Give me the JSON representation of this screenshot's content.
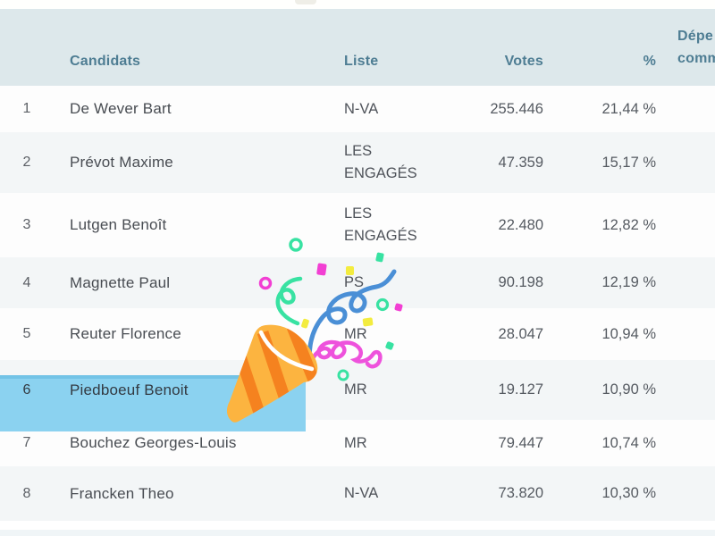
{
  "header": {
    "candidats": "Candidats",
    "liste": "Liste",
    "votes": "Votes",
    "pct": "%",
    "extra_line1": "Dépe",
    "extra_line2": "comm"
  },
  "table": {
    "rows": [
      {
        "rank": "1",
        "candidate": "De Wever Bart",
        "liste": "N-VA",
        "votes": "255.446",
        "pct": "21,44 %"
      },
      {
        "rank": "2",
        "candidate": "Prévot Maxime",
        "liste": "LES ENGAGÉS",
        "votes": "47.359",
        "pct": "15,17 %"
      },
      {
        "rank": "3",
        "candidate": "Lutgen Benoît",
        "liste": "LES ENGAGÉS",
        "votes": "22.480",
        "pct": "12,82 %"
      },
      {
        "rank": "4",
        "candidate": "Magnette Paul",
        "liste": "PS",
        "votes": "90.198",
        "pct": "12,19 %"
      },
      {
        "rank": "5",
        "candidate": "Reuter Florence",
        "liste": "MR",
        "votes": "28.047",
        "pct": "10,94 %"
      },
      {
        "rank": "6",
        "candidate": "Piedboeuf Benoit",
        "liste": "MR",
        "votes": "19.127",
        "pct": "10,90 %"
      },
      {
        "rank": "7",
        "candidate": "Bouchez Georges-Louis",
        "liste": "MR",
        "votes": "79.447",
        "pct": "10,74 %"
      },
      {
        "rank": "8",
        "candidate": "Francken Theo",
        "liste": "N-VA",
        "votes": "73.820",
        "pct": "10,30 %"
      }
    ],
    "highlighted_rank": "6"
  },
  "overlay": {
    "illustration": "party-popper-confetti"
  },
  "colors": {
    "header_bg": "#dde8eb",
    "header_text": "#4e7d93",
    "zebra": "#f3f6f7",
    "highlight_fill": "#8bd2f0",
    "highlight_border": "#72c3e6",
    "confetti_blue": "#4a8fd6",
    "confetti_pink": "#ee52dc",
    "confetti_green": "#38e2a2",
    "confetti_yellow": "#f3ec3f",
    "confetti_magenta": "#f23fd3",
    "popper_body": "#fcb440",
    "popper_stripe": "#f5821f"
  }
}
